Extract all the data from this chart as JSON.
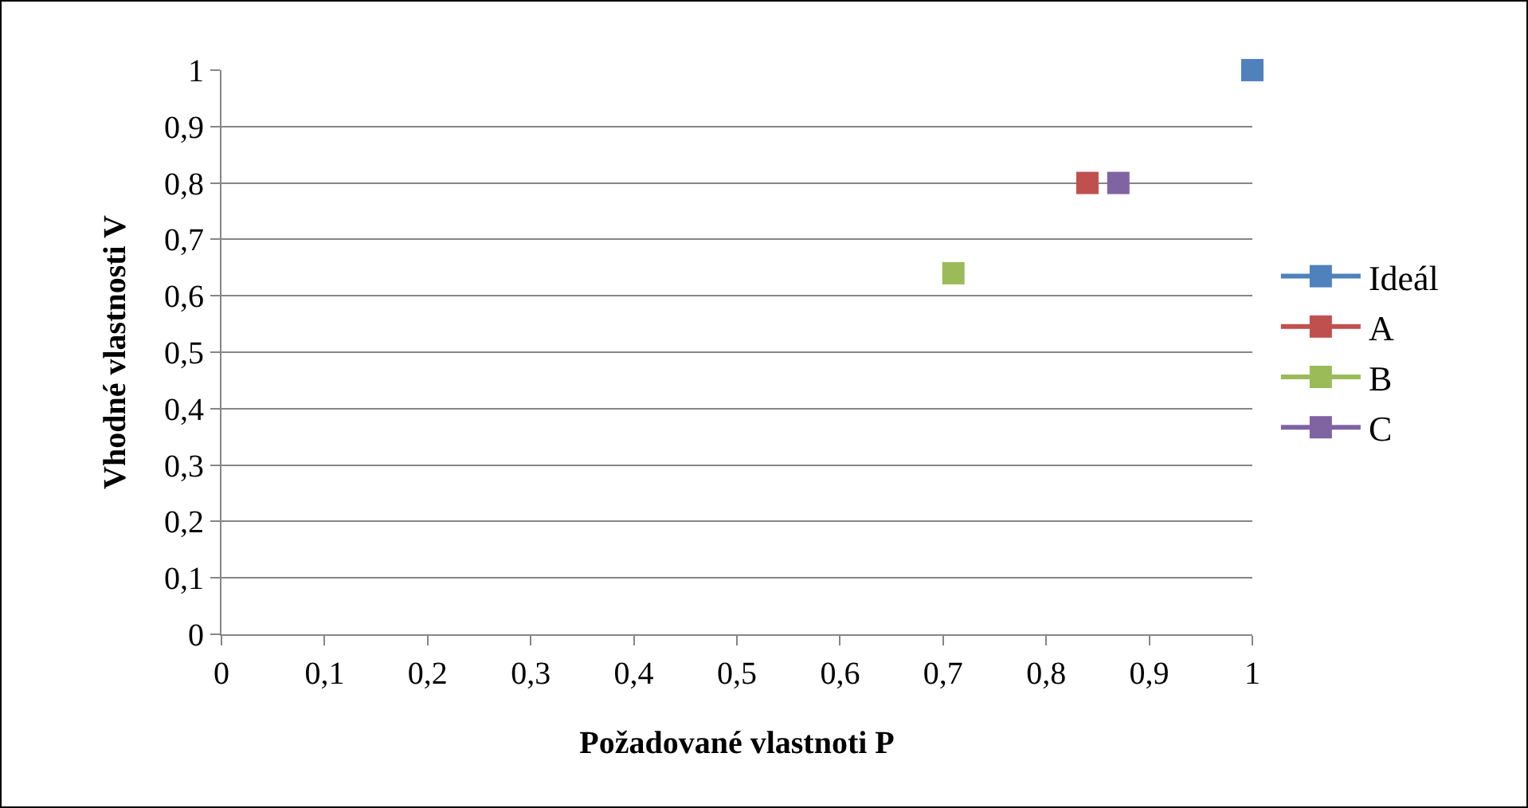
{
  "chart_data": {
    "type": "scatter",
    "xlabel": "Požadované vlastnoti P",
    "ylabel": "Vhodné vlastnosti V",
    "series": [
      {
        "name": "Ideál",
        "color": "#4f81bd",
        "x": [
          1
        ],
        "values": [
          1
        ]
      },
      {
        "name": "A",
        "color": "#c0504d",
        "x": [
          0.84
        ],
        "values": [
          0.8
        ]
      },
      {
        "name": "B",
        "color": "#9bbb59",
        "x": [
          0.71
        ],
        "values": [
          0.64
        ]
      },
      {
        "name": "C",
        "color": "#8064a2",
        "x": [
          0.87
        ],
        "values": [
          0.8
        ]
      }
    ],
    "xlim": [
      0,
      1
    ],
    "ylim": [
      0,
      1
    ],
    "xticks": [
      0,
      {
        "value": 0.1,
        "label": "0,1"
      },
      {
        "value": 0.2,
        "label": "0,2"
      },
      {
        "value": 0.3,
        "label": "0,3"
      },
      {
        "value": 0.4,
        "label": "0,4"
      },
      {
        "value": 0.5,
        "label": "0,5"
      },
      {
        "value": 0.6,
        "label": "0,6"
      },
      {
        "value": 0.7,
        "label": "0,7"
      },
      {
        "value": 0.8,
        "label": "0,8"
      },
      {
        "value": 0.9,
        "label": "0,9"
      },
      1
    ],
    "yticks": [
      0,
      {
        "value": 0.1,
        "label": "0,1"
      },
      {
        "value": 0.2,
        "label": "0,2"
      },
      {
        "value": 0.3,
        "label": "0,3"
      },
      {
        "value": 0.4,
        "label": "0,4"
      },
      {
        "value": 0.5,
        "label": "0,5"
      },
      {
        "value": 0.6,
        "label": "0,6"
      },
      {
        "value": 0.7,
        "label": "0,7"
      },
      {
        "value": 0.8,
        "label": "0,8"
      },
      {
        "value": 0.9,
        "label": "0,9"
      },
      1
    ],
    "grid": "y",
    "legend": "right",
    "marker": "square"
  }
}
